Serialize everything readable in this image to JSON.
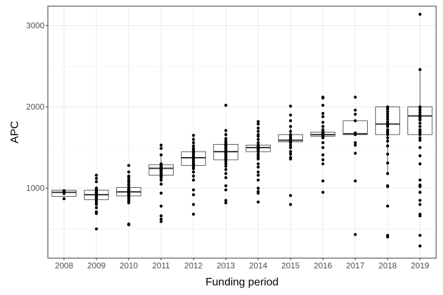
{
  "chart_data": {
    "type": "boxplot",
    "xlabel": "Funding period",
    "ylabel": "APC",
    "ylim": [
      140,
      3240
    ],
    "yticks": [
      1000,
      2000,
      3000
    ],
    "ytick_labels": [
      "1000",
      "2000",
      "3000"
    ],
    "categories": [
      "2008",
      "2009",
      "2010",
      "2011",
      "2012",
      "2013",
      "2014",
      "2015",
      "2016",
      "2017",
      "2018",
      "2019"
    ],
    "boxes": [
      {
        "category": "2008",
        "q1": 900,
        "median": 950,
        "q3": 975,
        "whisker_low": 870,
        "whisker_high": 975
      },
      {
        "category": "2009",
        "q1": 860,
        "median": 920,
        "q3": 975,
        "whisker_low": 800,
        "whisker_high": 1030
      },
      {
        "category": "2010",
        "q1": 905,
        "median": 955,
        "q3": 1010,
        "whisker_low": 830,
        "whisker_high": 1130
      },
      {
        "category": "2011",
        "q1": 1160,
        "median": 1245,
        "q3": 1290,
        "whisker_low": 1050,
        "whisker_high": 1390
      },
      {
        "category": "2012",
        "q1": 1280,
        "median": 1375,
        "q3": 1450,
        "whisker_low": 1090,
        "whisker_high": 1650
      },
      {
        "category": "2013",
        "q1": 1350,
        "median": 1450,
        "q3": 1540,
        "whisker_low": 1180,
        "whisker_high": 1710
      },
      {
        "category": "2014",
        "q1": 1450,
        "median": 1500,
        "q3": 1530,
        "whisker_low": 1360,
        "whisker_high": 1640
      },
      {
        "category": "2015",
        "q1": 1570,
        "median": 1590,
        "q3": 1660,
        "whisker_low": 1450,
        "whisker_high": 1760
      },
      {
        "category": "2016",
        "q1": 1640,
        "median": 1660,
        "q3": 1690,
        "whisker_low": 1620,
        "whisker_high": 1720
      },
      {
        "category": "2017",
        "q1": 1660,
        "median": 1670,
        "q3": 1830,
        "whisker_low": 1660,
        "whisker_high": 1830
      },
      {
        "category": "2018",
        "q1": 1660,
        "median": 1790,
        "q3": 2000,
        "whisker_low": 1180,
        "whisker_high": 2000
      },
      {
        "category": "2019",
        "q1": 1660,
        "median": 1890,
        "q3": 2000,
        "whisker_low": 1660,
        "whisker_high": 2460
      }
    ],
    "points": [
      {
        "category": "2008",
        "values": [
          970,
          960,
          955,
          950,
          945,
          940,
          935,
          870
        ]
      },
      {
        "category": "2009",
        "values": [
          1160,
          1120,
          1080,
          1000,
          990,
          980,
          975,
          960,
          950,
          940,
          930,
          920,
          910,
          900,
          890,
          880,
          860,
          840,
          820,
          800,
          760,
          710,
          690,
          500
        ]
      },
      {
        "category": "2010",
        "values": [
          1280,
          1200,
          1150,
          1130,
          1100,
          1080,
          1050,
          1030,
          1000,
          990,
          980,
          970,
          960,
          950,
          940,
          930,
          920,
          900,
          880,
          860,
          840,
          820,
          560,
          550
        ]
      },
      {
        "category": "2011",
        "values": [
          1530,
          1490,
          1410,
          1300,
          1290,
          1280,
          1270,
          1260,
          1250,
          1240,
          1230,
          1220,
          1210,
          1200,
          1180,
          1170,
          1160,
          1150,
          1140,
          1130,
          1100,
          1050,
          940,
          780,
          660,
          620,
          590
        ]
      },
      {
        "category": "2012",
        "values": [
          1650,
          1600,
          1560,
          1520,
          1490,
          1470,
          1450,
          1440,
          1420,
          1400,
          1380,
          1370,
          1360,
          1340,
          1320,
          1300,
          1290,
          1280,
          1260,
          1240,
          1200,
          1150,
          1100,
          980,
          920,
          800,
          680
        ]
      },
      {
        "category": "2013",
        "values": [
          2020,
          1710,
          1660,
          1610,
          1580,
          1560,
          1540,
          1530,
          1520,
          1500,
          1480,
          1460,
          1450,
          1440,
          1420,
          1400,
          1380,
          1360,
          1350,
          1330,
          1300,
          1270,
          1230,
          1180,
          1130,
          1030,
          980,
          850,
          820
        ]
      },
      {
        "category": "2014",
        "values": [
          1820,
          1790,
          1740,
          1700,
          1660,
          1640,
          1600,
          1560,
          1530,
          1520,
          1510,
          1500,
          1490,
          1480,
          1470,
          1450,
          1420,
          1400,
          1380,
          1360,
          1300,
          1260,
          1200,
          1160,
          1100,
          1000,
          960,
          940,
          830
        ]
      },
      {
        "category": "2015",
        "values": [
          2010,
          1900,
          1830,
          1760,
          1700,
          1660,
          1640,
          1620,
          1600,
          1590,
          1580,
          1570,
          1560,
          1530,
          1500,
          1450,
          1420,
          1380,
          1360,
          910,
          800
        ]
      },
      {
        "category": "2016",
        "values": [
          2120,
          2110,
          2020,
          1920,
          1880,
          1810,
          1760,
          1720,
          1700,
          1690,
          1680,
          1670,
          1660,
          1650,
          1640,
          1630,
          1620,
          1560,
          1500,
          1410,
          1350,
          1300,
          1090,
          950
        ]
      },
      {
        "category": "2017",
        "values": [
          2120,
          1960,
          1910,
          1830,
          1680,
          1670,
          1660,
          1560,
          1530,
          1430,
          1090,
          430
        ]
      },
      {
        "category": "2018",
        "values": [
          2000,
          1990,
          1970,
          1940,
          1910,
          1880,
          1850,
          1820,
          1800,
          1790,
          1780,
          1760,
          1720,
          1700,
          1680,
          1660,
          1620,
          1580,
          1520,
          1420,
          1310,
          1180,
          1030,
          1020,
          780,
          420,
          400
        ]
      },
      {
        "category": "2019",
        "values": [
          3140,
          2460,
          2000,
          1990,
          1960,
          1930,
          1900,
          1880,
          1860,
          1840,
          1800,
          1760,
          1720,
          1700,
          1680,
          1660,
          1620,
          1590,
          1500,
          1400,
          1300,
          1100,
          1040,
          1020,
          950,
          850,
          800,
          680,
          660,
          420,
          290
        ]
      }
    ],
    "grid": true,
    "colors": {
      "background": "#ffffff",
      "grid": "#ebebeb",
      "panel_border": "#333333",
      "box": "#333333",
      "point": "#000000",
      "tick_text": "#4d4d4d"
    }
  }
}
